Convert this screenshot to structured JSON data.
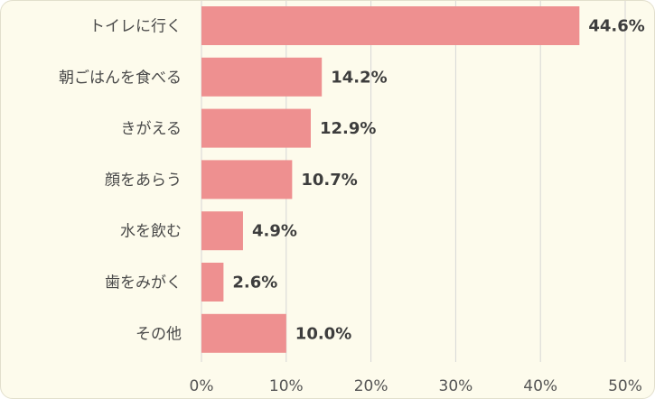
{
  "chart_data": {
    "type": "bar",
    "orientation": "horizontal",
    "categories": [
      "トイレに行く",
      "朝ごはんを食べる",
      "きがえる",
      "顔をあらう",
      "水を飲む",
      "歯をみがく",
      "その他"
    ],
    "values": [
      44.6,
      14.2,
      12.9,
      10.7,
      4.9,
      2.6,
      10.0
    ],
    "data_labels": [
      "44.6%",
      "14.2%",
      "12.9%",
      "10.7%",
      "4.9%",
      "2.6%",
      "10.0%"
    ],
    "x_ticks": [
      0,
      10,
      20,
      30,
      40,
      50
    ],
    "x_tick_labels": [
      "0%",
      "10%",
      "20%",
      "30%",
      "40%",
      "50%"
    ],
    "xlim": [
      0,
      50
    ],
    "title": "",
    "xlabel": "",
    "ylabel": "",
    "grid": "vertical",
    "legend": "none",
    "colors": {
      "bar": "#ee9090",
      "grid": "#d6d6d6",
      "background": "#fdfbec"
    }
  }
}
